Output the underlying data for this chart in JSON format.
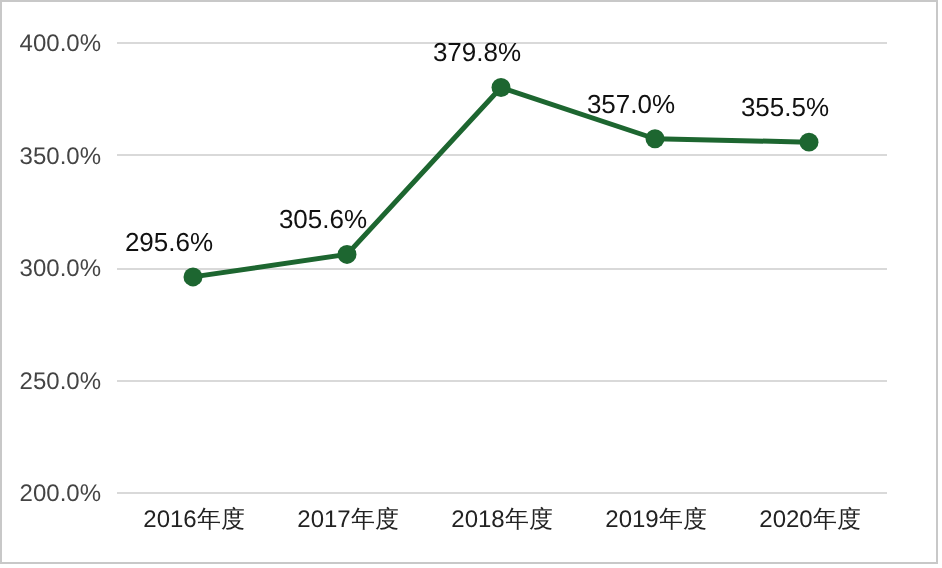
{
  "chart_data": {
    "type": "line",
    "categories": [
      "2016年度",
      "2017年度",
      "2018年度",
      "2019年度",
      "2020年度"
    ],
    "values": [
      295.6,
      305.6,
      379.8,
      357.0,
      355.5
    ],
    "value_labels": [
      "295.6%",
      "305.6%",
      "379.8%",
      "357.0%",
      "355.5%"
    ],
    "color": "#1d6630",
    "marker": "circle",
    "line_style": "solid",
    "grid": "y",
    "ylim": [
      200,
      400
    ],
    "yticks": [
      {
        "value": 200,
        "label": "200.0%"
      },
      {
        "value": 250,
        "label": "250.0%"
      },
      {
        "value": 300,
        "label": "300.0%"
      },
      {
        "value": 350,
        "label": "350.0%"
      },
      {
        "value": 400,
        "label": "400.0%"
      }
    ]
  }
}
